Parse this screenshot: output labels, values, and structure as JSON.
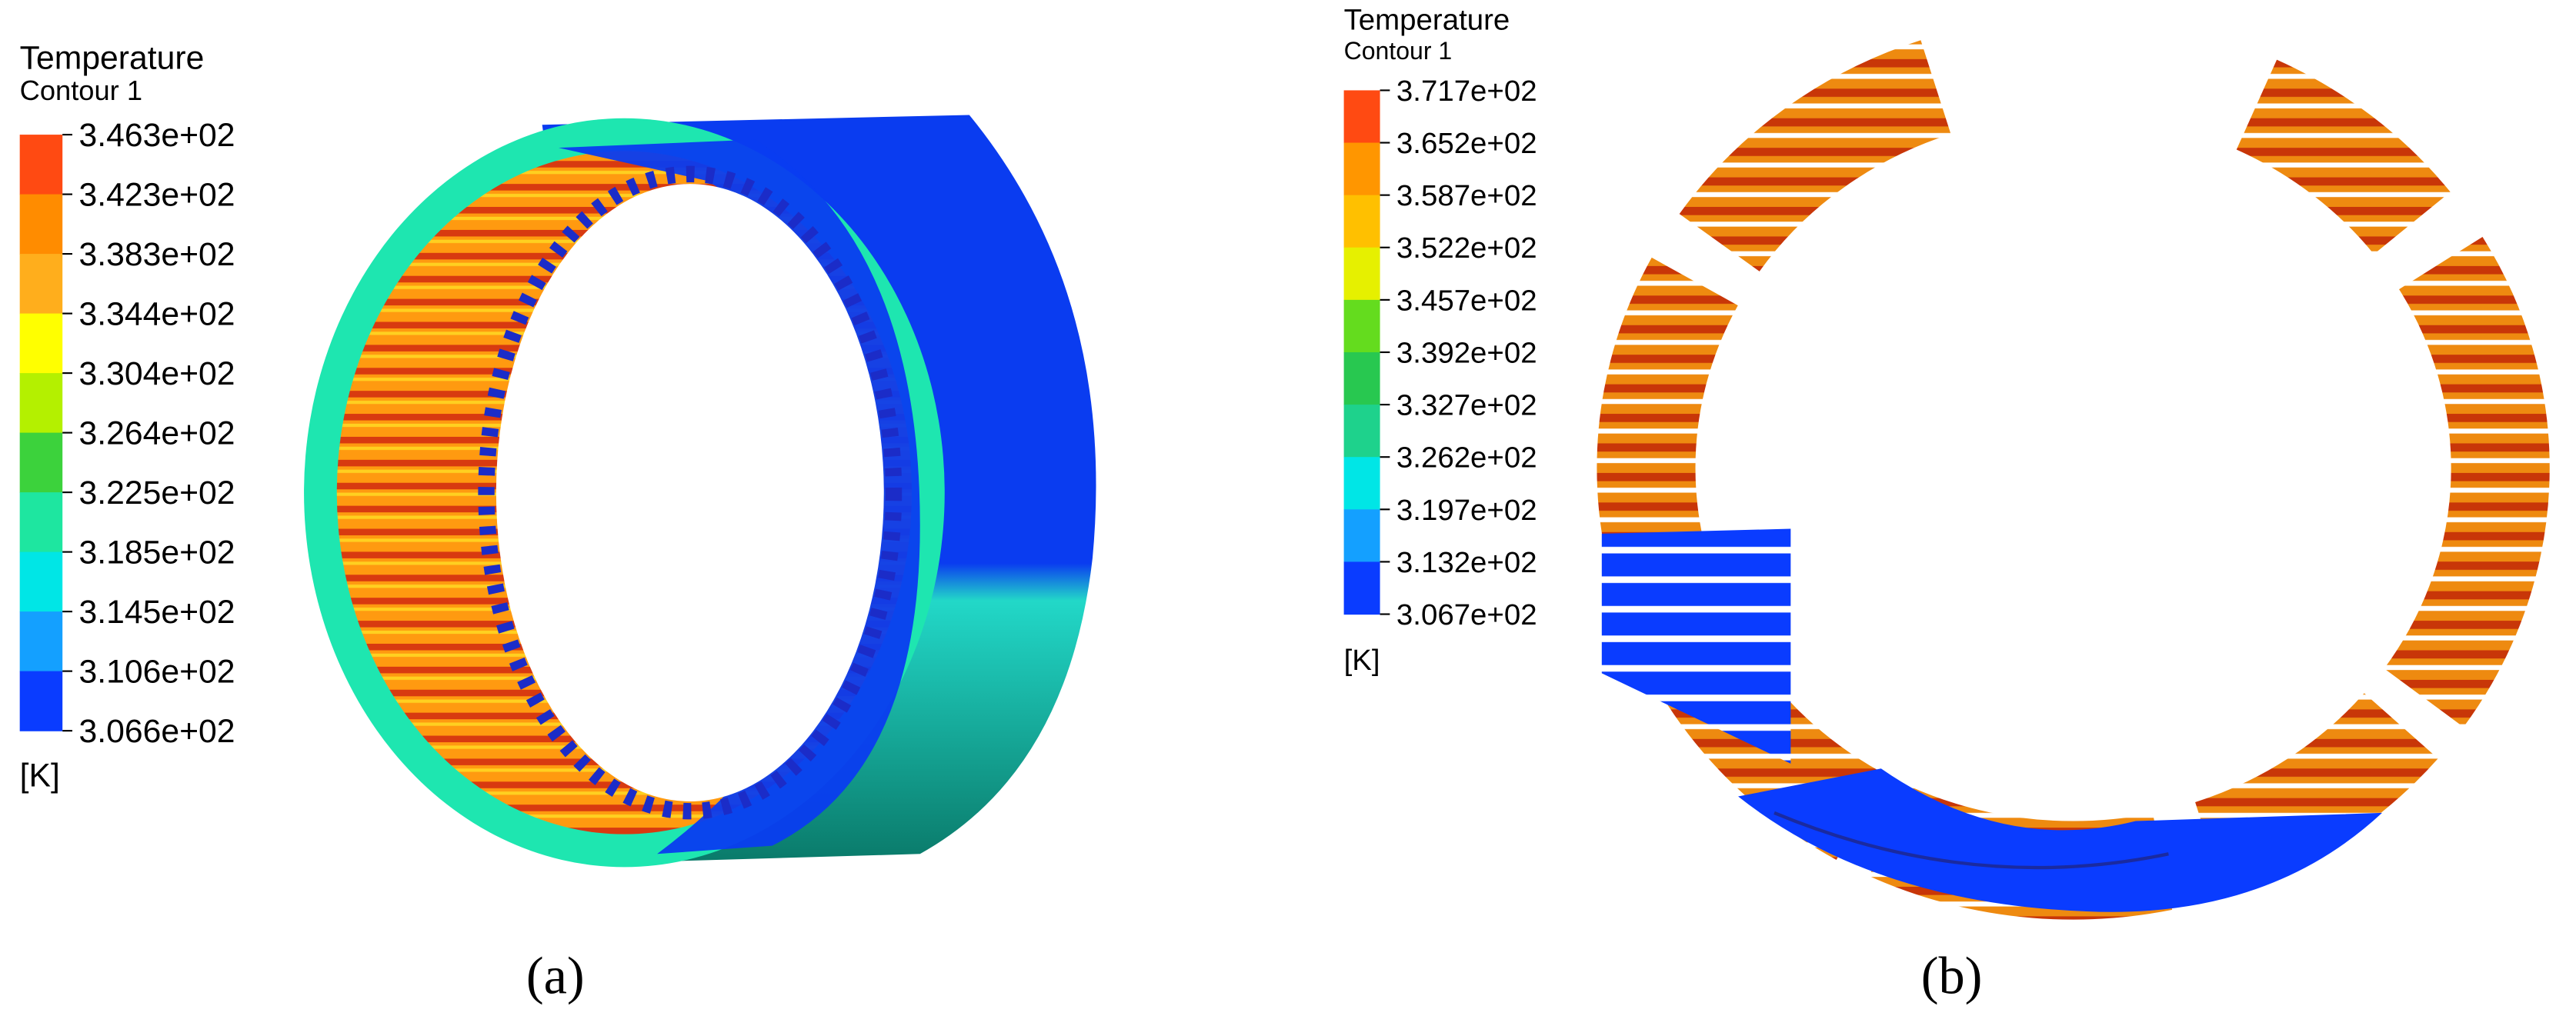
{
  "panels": [
    {
      "legend": {
        "title": "Temperature",
        "subtitle": "Contour 1",
        "labels": [
          "3.463e+02",
          "3.423e+02",
          "3.383e+02",
          "3.344e+02",
          "3.304e+02",
          "3.264e+02",
          "3.225e+02",
          "3.185e+02",
          "3.145e+02",
          "3.106e+02",
          "3.066e+02"
        ],
        "colors": [
          "#ff4a12",
          "#ff8c00",
          "#ffae1c",
          "#ffff00",
          "#b4f000",
          "#3cd23c",
          "#1ee6a0",
          "#00e6e6",
          "#14a0ff",
          "#0a3cff"
        ],
        "unit": "[K]"
      },
      "caption": "(a)"
    },
    {
      "legend": {
        "title": "Temperature",
        "subtitle": "Contour 1",
        "labels": [
          "3.717e+02",
          "3.652e+02",
          "3.587e+02",
          "3.522e+02",
          "3.457e+02",
          "3.392e+02",
          "3.327e+02",
          "3.262e+02",
          "3.197e+02",
          "3.132e+02",
          "3.067e+02"
        ],
        "colors": [
          "#ff4a12",
          "#ff9600",
          "#ffc000",
          "#e6f000",
          "#64dc1e",
          "#28c850",
          "#1ed28c",
          "#00e6e6",
          "#14a0ff",
          "#0a3cff"
        ],
        "unit": "[K]"
      },
      "caption": "(b)"
    }
  ]
}
